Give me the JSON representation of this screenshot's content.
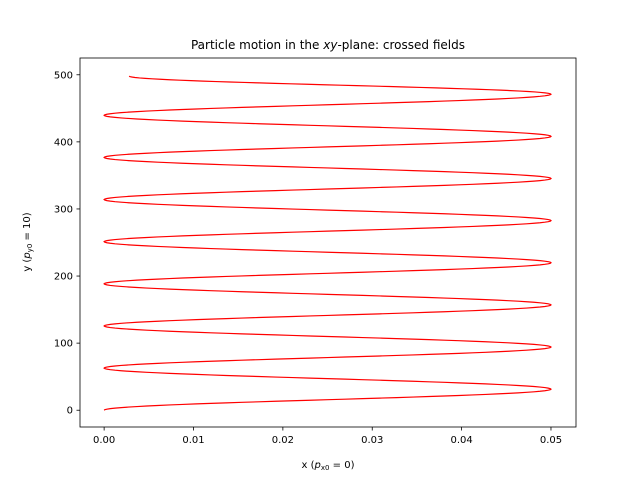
{
  "chart_data": {
    "type": "line",
    "title": {
      "prefix": "Particle motion in the ",
      "math": "xy",
      "suffix": "-plane: crossed fields"
    },
    "xlabel": {
      "prefix": "x (",
      "var": "p",
      "sub": "x0",
      "suffix": " = 0)"
    },
    "ylabel": {
      "prefix": "y (",
      "var": "p",
      "sub": "y0",
      "suffix": " = 10)"
    },
    "xlim": [
      -0.0027,
      0.0528
    ],
    "ylim": [
      -25,
      525
    ],
    "xticks": [
      0.0,
      0.01,
      0.02,
      0.03,
      0.04,
      0.05
    ],
    "xtick_labels": [
      "0.00",
      "0.01",
      "0.02",
      "0.03",
      "0.04",
      "0.05"
    ],
    "yticks": [
      0,
      100,
      200,
      300,
      400,
      500
    ],
    "ytick_labels": [
      "0",
      "100",
      "200",
      "300",
      "400",
      "500"
    ],
    "grid": false,
    "series": [
      {
        "color": "#ff0000",
        "x": [
          0.0,
          0.05,
          0.0,
          0.05,
          0.0,
          0.05,
          0.0,
          0.05,
          0.0,
          0.05,
          0.0,
          0.05,
          0.0,
          0.05,
          0.0,
          0.05,
          0.0028
        ],
        "y": [
          0,
          31.4,
          62.8,
          94.2,
          125.6,
          157.0,
          188.4,
          219.8,
          251.2,
          282.6,
          314.0,
          345.4,
          376.8,
          408.2,
          439.6,
          471.0,
          498
        ]
      }
    ]
  }
}
